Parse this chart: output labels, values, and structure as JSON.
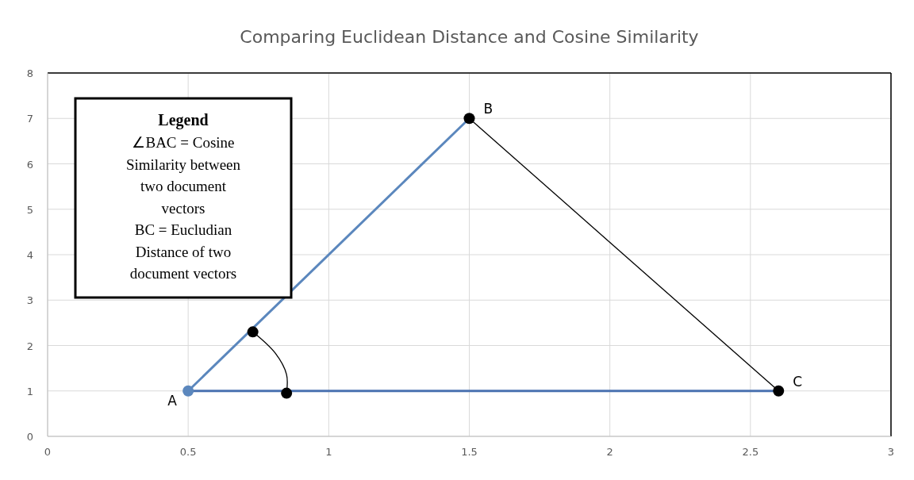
{
  "chart_data": {
    "type": "line",
    "title": "Comparing Euclidean Distance and Cosine Similarity",
    "xlim": [
      0,
      3
    ],
    "xticks": [
      0,
      0.5,
      1,
      1.5,
      2,
      2.5,
      3
    ],
    "ylim": [
      0,
      8
    ],
    "yticks": [
      0,
      1,
      2,
      3,
      4,
      5,
      6,
      7,
      8
    ],
    "grid": true,
    "series": [
      {
        "color": "#5b87bd",
        "x": [
          0.5,
          1.5
        ],
        "values": [
          1,
          7
        ],
        "marker": "none"
      },
      {
        "color": "#4a72b0",
        "x": [
          0.5,
          2.6
        ],
        "values": [
          1,
          1
        ],
        "marker": "none"
      },
      {
        "color": "#000000",
        "x": [
          1.5,
          2.6
        ],
        "values": [
          7,
          1
        ],
        "marker": "none"
      },
      {
        "color": "#000000",
        "x": [
          0.73,
          0.81,
          0.85,
          0.85
        ],
        "values": [
          2.3,
          1.83,
          1.36,
          0.95
        ],
        "marker": "none"
      },
      {
        "type": "scatter",
        "color": "#000000",
        "x": [
          1.5,
          2.6,
          0.73,
          0.85
        ],
        "values": [
          7,
          1,
          2.3,
          0.95
        ],
        "marker": "circle"
      },
      {
        "type": "scatter",
        "color": "#5b87bd",
        "x": [
          0.5
        ],
        "values": [
          1
        ],
        "marker": "circle"
      }
    ],
    "annotations": [
      {
        "text": "A",
        "x": 0.5,
        "y": 1
      },
      {
        "text": "B",
        "x": 1.5,
        "y": 7
      },
      {
        "text": "C",
        "x": 2.6,
        "y": 1
      },
      "Legend",
      "∠BAC = Cosine\nSimilarity between\ntwo document\nvectors\nBC = Eucludian\nDistance of two\ndocument vectors"
    ]
  }
}
